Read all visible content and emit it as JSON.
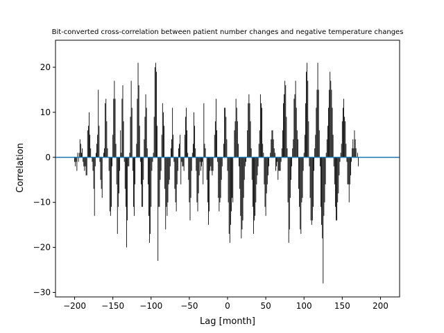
{
  "chart_data": {
    "type": "bar",
    "title": "Bit-converted cross-correlation between patient number changes and negative temperature changes",
    "xlabel": "Lag [month]",
    "ylabel": "Correlation",
    "xlim": [
      -225,
      225
    ],
    "ylim": [
      -31,
      26
    ],
    "xticks": [
      -200,
      -150,
      -100,
      -50,
      0,
      50,
      100,
      150,
      200
    ],
    "xtick_labels": [
      "−200",
      "−150",
      "−100",
      "−50",
      "0",
      "50",
      "100",
      "150",
      "200"
    ],
    "yticks": [
      -30,
      -20,
      -10,
      0,
      10,
      20
    ],
    "ytick_labels": [
      "−30",
      "−20",
      "−10",
      "0",
      "10",
      "20"
    ],
    "grid": false,
    "bar_color": "#000000",
    "zero_line_color": "#1f77b4",
    "lags": [
      -200,
      -199,
      -198,
      -197,
      -196,
      -195,
      -194,
      -193,
      -192,
      -191,
      -190,
      -189,
      -188,
      -187,
      -186,
      -185,
      -184,
      -183,
      -182,
      -181,
      -180,
      -179,
      -178,
      -177,
      -176,
      -175,
      -174,
      -173,
      -172,
      -171,
      -170,
      -169,
      -168,
      -167,
      -166,
      -165,
      -164,
      -163,
      -162,
      -161,
      -160,
      -159,
      -158,
      -157,
      -156,
      -155,
      -154,
      -153,
      -152,
      -151,
      -150,
      -149,
      -148,
      -147,
      -146,
      -145,
      -144,
      -143,
      -142,
      -141,
      -140,
      -139,
      -138,
      -137,
      -136,
      -135,
      -134,
      -133,
      -132,
      -131,
      -130,
      -129,
      -128,
      -127,
      -126,
      -125,
      -124,
      -123,
      -122,
      -121,
      -120,
      -119,
      -118,
      -117,
      -116,
      -115,
      -114,
      -113,
      -112,
      -111,
      -110,
      -109,
      -108,
      -107,
      -106,
      -105,
      -104,
      -103,
      -102,
      -101,
      -100,
      -99,
      -98,
      -97,
      -96,
      -95,
      -94,
      -93,
      -92,
      -91,
      -90,
      -89,
      -88,
      -87,
      -86,
      -85,
      -84,
      -83,
      -82,
      -81,
      -80,
      -79,
      -78,
      -77,
      -76,
      -75,
      -74,
      -73,
      -72,
      -71,
      -70,
      -69,
      -68,
      -67,
      -66,
      -65,
      -64,
      -63,
      -62,
      -61,
      -60,
      -59,
      -58,
      -57,
      -56,
      -55,
      -54,
      -53,
      -52,
      -51,
      -50,
      -49,
      -48,
      -47,
      -46,
      -45,
      -44,
      -43,
      -42,
      -41,
      -40,
      -39,
      -38,
      -37,
      -36,
      -35,
      -34,
      -33,
      -32,
      -31,
      -30,
      -29,
      -28,
      -27,
      -26,
      -25,
      -24,
      -23,
      -22,
      -21,
      -20,
      -19,
      -18,
      -17,
      -16,
      -15,
      -14,
      -13,
      -12,
      -11,
      -10,
      -9,
      -8,
      -7,
      -6,
      -5,
      -4,
      -3,
      -2,
      -1,
      0,
      1,
      2,
      3,
      4,
      5,
      6,
      7,
      8,
      9,
      10,
      11,
      12,
      13,
      14,
      15,
      16,
      17,
      18,
      19,
      20,
      21,
      22,
      23,
      24,
      25,
      26,
      27,
      28,
      29,
      30,
      31,
      32,
      33,
      34,
      35,
      36,
      37,
      38,
      39,
      40,
      41,
      42,
      43,
      44,
      45,
      46,
      47,
      48,
      49,
      50,
      51,
      52,
      53,
      54,
      55,
      56,
      57,
      58,
      59,
      60,
      61,
      62,
      63,
      64,
      65,
      66,
      67,
      68,
      69,
      70,
      71,
      72,
      73,
      74,
      75,
      76,
      77,
      78,
      79,
      80,
      81,
      82,
      83,
      84,
      85,
      86,
      87,
      88,
      89,
      90,
      91,
      92,
      93,
      94,
      95,
      96,
      97,
      98,
      99,
      100,
      101,
      102,
      103,
      104,
      105,
      106,
      107,
      108,
      109,
      110,
      111,
      112,
      113,
      114,
      115,
      116,
      117,
      118,
      119,
      120,
      121,
      122,
      123,
      124,
      125,
      126,
      127,
      128,
      129,
      130,
      131,
      132,
      133,
      134,
      135,
      136,
      137,
      138,
      139,
      140,
      141,
      142,
      143,
      144,
      145,
      146,
      147,
      148,
      149,
      150,
      151,
      152,
      153,
      154,
      155,
      156,
      157,
      158,
      159,
      160,
      161,
      162,
      163,
      164,
      165,
      166,
      167,
      168,
      169,
      170,
      171,
      172,
      173,
      174,
      175,
      176,
      177,
      178,
      179,
      180,
      181,
      182,
      183,
      184,
      185,
      186,
      187,
      188,
      189,
      190,
      191,
      192,
      193,
      194,
      195,
      196,
      197,
      198,
      199,
      200
    ],
    "values": [
      -1,
      -2,
      -1,
      -3,
      1,
      -1,
      1,
      4,
      3,
      1,
      2,
      -1,
      -2,
      -3,
      -2,
      -4,
      -4,
      6,
      7,
      10,
      5,
      2,
      0,
      -1,
      -3,
      -7,
      -13,
      -2,
      1,
      3,
      5,
      15,
      7,
      -1,
      -5,
      -7,
      -9,
      0,
      1,
      2,
      12,
      13,
      8,
      2,
      0,
      -3,
      -12,
      -13,
      -11,
      -2,
      5,
      13,
      17,
      13,
      3,
      -6,
      -17,
      -11,
      -8,
      -3,
      6,
      1,
      13,
      16,
      8,
      -1,
      -7,
      -11,
      -20,
      -14,
      -2,
      -2,
      1,
      9,
      17,
      11,
      -3,
      -11,
      -13,
      -6,
      0,
      3,
      13,
      21,
      16,
      7,
      -1,
      -6,
      -11,
      -11,
      -5,
      4,
      9,
      14,
      11,
      2,
      -6,
      -13,
      -19,
      -17,
      -11,
      -3,
      -1,
      1,
      9,
      20,
      21,
      19,
      7,
      -23,
      -11,
      -11,
      -5,
      -3,
      5,
      12,
      10,
      7,
      -7,
      -16,
      -11,
      -13,
      -10,
      -6,
      -5,
      -2,
      2,
      4,
      11,
      5,
      -1,
      -7,
      -10,
      -12,
      -6,
      -3,
      2,
      3,
      5,
      -6,
      -1,
      -2,
      -2,
      -3,
      5,
      9,
      11,
      6,
      1,
      -5,
      -10,
      -14,
      -9,
      -3,
      1,
      3,
      10,
      7,
      2,
      -3,
      -10,
      -12,
      -8,
      -4,
      -1,
      -3,
      -2,
      -1,
      -6,
      12,
      3,
      2,
      0,
      -5,
      -10,
      -15,
      -12,
      -3,
      -2,
      -3,
      -4,
      -3,
      0,
      5,
      8,
      13,
      6,
      -1,
      -9,
      -12,
      -10,
      -9,
      -5,
      -2,
      0,
      3,
      11,
      11,
      9,
      4,
      -3,
      -10,
      -17,
      -19,
      -15,
      -12,
      -9,
      -10,
      0,
      6,
      8,
      13,
      11,
      8,
      3,
      -2,
      -7,
      -13,
      -18,
      -16,
      -14,
      -9,
      -5,
      -2,
      -1,
      0,
      6,
      12,
      14,
      12,
      8,
      2,
      -5,
      -11,
      -17,
      -14,
      -13,
      -10,
      -6,
      -4,
      -2,
      3,
      6,
      14,
      12,
      11,
      3,
      1,
      -6,
      -11,
      -13,
      -8,
      -6,
      -4,
      -2,
      0,
      1,
      4,
      6,
      6,
      4,
      2,
      1,
      -3,
      -2,
      -1,
      -5,
      -3,
      -3,
      -3,
      -1,
      2,
      6,
      12,
      14,
      17,
      16,
      9,
      2,
      -10,
      -19,
      -16,
      -9,
      -5,
      -2,
      2,
      4,
      13,
      14,
      17,
      11,
      6,
      4,
      -7,
      -11,
      -16,
      -17,
      -10,
      -9,
      -3,
      1,
      5,
      12,
      19,
      21,
      17,
      8,
      -2,
      -9,
      -14,
      -15,
      -14,
      -11,
      -3,
      2,
      5,
      11,
      15,
      21,
      15,
      6,
      -2,
      -11,
      -15,
      -18,
      -28,
      -13,
      -10,
      -6,
      1,
      4,
      7,
      11,
      15,
      19,
      17,
      15,
      11,
      5,
      -2,
      -6,
      -11,
      -14,
      -14,
      -10,
      -8,
      -4,
      -1,
      1,
      3,
      8,
      11,
      13,
      9,
      8,
      3,
      -1,
      -6,
      -6,
      -10,
      -6,
      -4,
      -1,
      2,
      4,
      2,
      6,
      4,
      2,
      0,
      1,
      -2
    ]
  }
}
